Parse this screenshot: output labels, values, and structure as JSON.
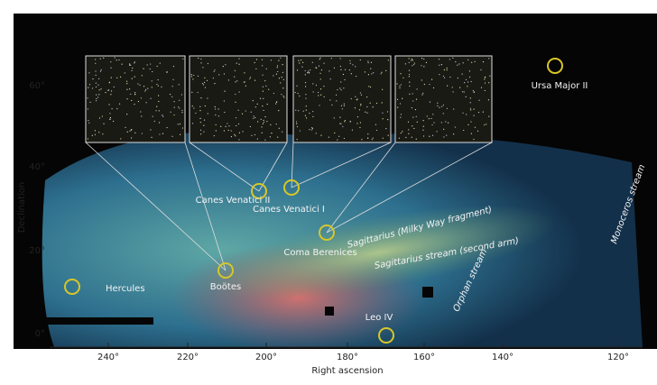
{
  "figure": {
    "x_axis": {
      "label": "Right ascension",
      "ticks": [
        "240°",
        "220°",
        "200°",
        "180°",
        "160°",
        "140°",
        "120°"
      ]
    },
    "y_axis": {
      "label": "Declination",
      "ticks": [
        "60°",
        "40°",
        "20°",
        "0°"
      ]
    },
    "objects": [
      {
        "label": "Hercules"
      },
      {
        "label": "Boötes"
      },
      {
        "label": "Canes Venatici II"
      },
      {
        "label": "Canes Venatici I"
      },
      {
        "label": "Coma Berenices"
      },
      {
        "label": "Ursa Major II"
      },
      {
        "label": "Leo IV"
      }
    ],
    "streams": [
      {
        "label": "Sagittarius (Milky Way fragment)"
      },
      {
        "label": "Sagittarius stream (second arm)"
      },
      {
        "label": "Orphan stream"
      },
      {
        "label": "Monoceros stream"
      }
    ]
  }
}
